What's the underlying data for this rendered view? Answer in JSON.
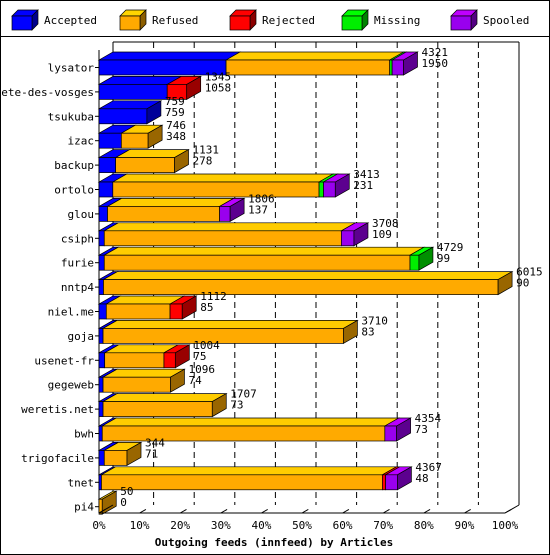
{
  "chart_data": {
    "type": "bar",
    "orientation": "horizontal",
    "stacked": true,
    "style": "3d",
    "title": "",
    "xlabel": "Outgoing feeds (innfeed) by Articles",
    "ylabel": "",
    "xlim": [
      0,
      100
    ],
    "x_ticks": [
      "0%",
      "10%",
      "20%",
      "30%",
      "40%",
      "50%",
      "60%",
      "70%",
      "80%",
      "90%",
      "100%"
    ],
    "grid": true,
    "legend_position": "top",
    "categories": [
      "lysator",
      "bete-des-vosges",
      "tsukuba",
      "izac",
      "backup",
      "ortolo",
      "glou",
      "csiph",
      "furie",
      "nntp4",
      "niel.me",
      "goja",
      "usenet-fr",
      "gegeweb",
      "weretis.net",
      "bwh",
      "trigofacile",
      "tnet",
      "pi4"
    ],
    "annotations": {
      "top": [
        "4321",
        "1345",
        "759",
        "746",
        "1131",
        "3413",
        "1806",
        "3708",
        "4729",
        "6015",
        "1112",
        "3710",
        "1004",
        "1096",
        "1707",
        "4354",
        "344",
        "4367",
        "50"
      ],
      "bottom": [
        "1950",
        "1058",
        "759",
        "348",
        "278",
        "231",
        "137",
        "109",
        "99",
        "90",
        "85",
        "83",
        "75",
        "74",
        "73",
        "73",
        "71",
        "48",
        "0"
      ]
    },
    "series": [
      {
        "name": "Accepted",
        "color": "#0000ff",
        "values": [
          31.3,
          16.8,
          11.8,
          5.5,
          4.1,
          3.4,
          2.1,
          1.3,
          1.3,
          1.1,
          1.8,
          1.0,
          1.4,
          1.0,
          1.0,
          0.8,
          1.3,
          0.6,
          0
        ]
      },
      {
        "name": "Refused",
        "color": "#ffaa00",
        "values": [
          40.3,
          0,
          0,
          6.6,
          14.5,
          50.8,
          27.6,
          58.4,
          75.3,
          97.2,
          15.7,
          59.2,
          14.6,
          16.6,
          26.9,
          69.6,
          5.6,
          69.2,
          0.8
        ]
      },
      {
        "name": "Rejected",
        "color": "#ff0000",
        "values": [
          0,
          4.8,
          0,
          0,
          0,
          0,
          0,
          0,
          0,
          0,
          3.0,
          0,
          2.8,
          0,
          0,
          0,
          0,
          0.8,
          0
        ]
      },
      {
        "name": "Missing",
        "color": "#00ee00",
        "values": [
          0.6,
          0,
          0,
          0,
          0,
          1.1,
          0,
          0,
          2.2,
          0,
          0,
          0,
          0,
          0,
          0,
          0,
          0,
          0,
          0
        ]
      },
      {
        "name": "Spooled",
        "color": "#9900ee",
        "values": [
          2.8,
          0,
          0,
          0,
          0,
          2.9,
          2.6,
          3.1,
          0,
          0,
          0,
          0,
          0,
          0,
          0,
          2.9,
          0,
          2.9,
          0
        ]
      }
    ]
  }
}
